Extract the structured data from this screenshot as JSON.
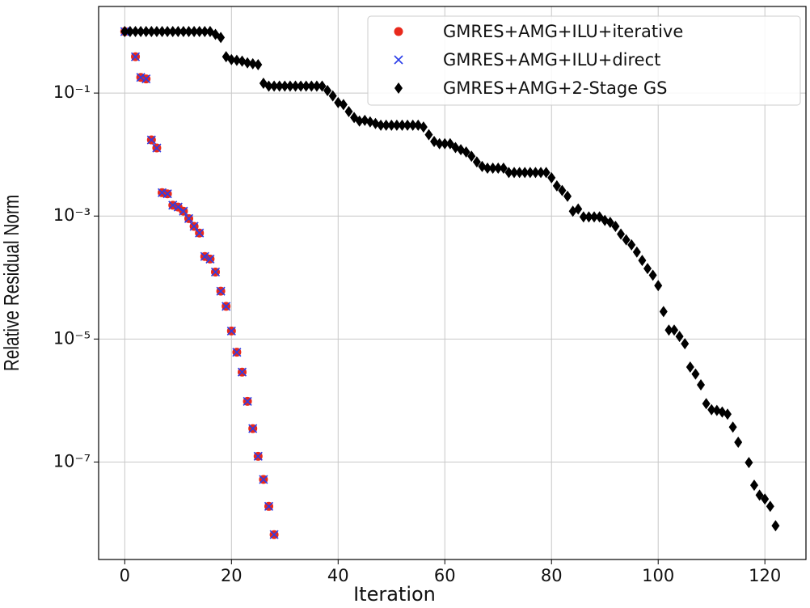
{
  "chart_data": {
    "type": "scatter",
    "xlabel": "Iteration",
    "ylabel": "Relative Residual Norm",
    "xlim": [
      -4.9,
      127.7
    ],
    "ylim": [
      2.6e-09,
      2.56
    ],
    "ylog": true,
    "grid": true,
    "legend": "upper right",
    "xticks": [
      0,
      20,
      40,
      60,
      80,
      100,
      120
    ],
    "yticks": [
      {
        "value": 0.1,
        "label": "10⁻¹"
      },
      {
        "value": 0.001,
        "label": "10⁻³"
      },
      {
        "value": 1e-05,
        "label": "10⁻⁵"
      },
      {
        "value": 1e-07,
        "label": "10⁻⁷"
      }
    ],
    "series": [
      {
        "name": "GMRES+AMG+ILU+iterative",
        "color": "#e8291c",
        "marker": "o",
        "x": [
          0,
          2,
          3,
          4,
          5,
          6,
          7,
          8,
          9,
          10,
          11,
          12,
          13,
          14,
          15,
          16,
          17,
          18,
          19,
          20,
          21,
          22,
          23,
          24,
          25,
          26,
          27,
          28
        ],
        "values": [
          1.0,
          0.39,
          0.18,
          0.17,
          0.0173,
          0.0128,
          0.0024,
          0.0023,
          0.0015,
          0.0014,
          0.0012,
          0.00091,
          0.00068,
          0.00053,
          0.00022,
          0.0002,
          0.000123,
          6e-05,
          3.4e-05,
          1.35e-05,
          6.1e-06,
          2.9e-06,
          9.7e-07,
          3.5e-07,
          1.24e-07,
          5.2e-08,
          1.9e-08,
          6.6e-09
        ]
      },
      {
        "name": "GMRES+AMG+ILU+direct",
        "color": "#2a3de8",
        "marker": "x",
        "x": [
          0,
          2,
          3,
          4,
          5,
          6,
          7,
          8,
          9,
          10,
          11,
          12,
          13,
          14,
          15,
          16,
          17,
          18,
          19,
          20,
          21,
          22,
          23,
          24,
          25,
          26,
          27,
          28
        ],
        "values": [
          1.0,
          0.39,
          0.18,
          0.17,
          0.0173,
          0.0128,
          0.0024,
          0.0023,
          0.0015,
          0.0014,
          0.0012,
          0.00091,
          0.00068,
          0.00053,
          0.00022,
          0.0002,
          0.000123,
          6e-05,
          3.4e-05,
          1.35e-05,
          6.1e-06,
          2.9e-06,
          9.7e-07,
          3.5e-07,
          1.24e-07,
          5.2e-08,
          1.9e-08,
          6.6e-09
        ]
      },
      {
        "name": "GMRES+AMG+2-Stage GS",
        "color": "#000000",
        "marker": "D",
        "x": [
          0,
          1,
          2,
          3,
          4,
          5,
          6,
          7,
          8,
          9,
          10,
          11,
          12,
          13,
          14,
          15,
          16,
          17,
          18,
          19,
          20,
          21,
          22,
          23,
          24,
          25,
          26,
          27,
          28,
          29,
          30,
          31,
          32,
          33,
          34,
          35,
          36,
          37,
          38,
          39,
          40,
          41,
          42,
          43,
          44,
          45,
          46,
          47,
          48,
          49,
          50,
          51,
          52,
          53,
          54,
          55,
          56,
          57,
          58,
          59,
          60,
          61,
          62,
          63,
          64,
          65,
          66,
          67,
          68,
          69,
          70,
          71,
          72,
          73,
          74,
          75,
          76,
          77,
          78,
          79,
          80,
          81,
          82,
          83,
          84,
          85,
          86,
          87,
          88,
          89,
          90,
          91,
          92,
          93,
          94,
          95,
          96,
          97,
          98,
          99,
          100,
          101,
          102,
          103,
          104,
          105,
          106,
          107,
          108,
          109,
          110,
          111,
          112,
          113,
          114,
          115,
          117,
          118,
          119,
          120,
          121,
          122
        ],
        "values": [
          1.0,
          1.0,
          1.0,
          1.0,
          1.0,
          1.0,
          1.0,
          1.0,
          1.0,
          1.0,
          1.0,
          1.0,
          1.0,
          1.0,
          1.0,
          1.0,
          1.0,
          0.9,
          0.8,
          0.39,
          0.35,
          0.34,
          0.33,
          0.31,
          0.3,
          0.29,
          0.144,
          0.13,
          0.13,
          0.13,
          0.13,
          0.13,
          0.13,
          0.13,
          0.13,
          0.13,
          0.13,
          0.13,
          0.11,
          0.09,
          0.07,
          0.065,
          0.05,
          0.04,
          0.035,
          0.036,
          0.034,
          0.032,
          0.03,
          0.03,
          0.03,
          0.03,
          0.03,
          0.03,
          0.03,
          0.03,
          0.028,
          0.021,
          0.0163,
          0.015,
          0.015,
          0.015,
          0.013,
          0.012,
          0.011,
          0.0094,
          0.0076,
          0.0064,
          0.006,
          0.006,
          0.006,
          0.006,
          0.0051,
          0.0051,
          0.0051,
          0.0051,
          0.0051,
          0.0051,
          0.0051,
          0.0051,
          0.0042,
          0.0031,
          0.0026,
          0.0021,
          0.0012,
          0.0013,
          0.00097,
          0.00097,
          0.00097,
          0.00097,
          0.00085,
          0.00079,
          0.00068,
          0.00051,
          0.00041,
          0.00034,
          0.00026,
          0.00019,
          0.00014,
          0.000109,
          7.4e-05,
          2.8e-05,
          1.4e-05,
          1.4e-05,
          1.1e-05,
          8.4e-06,
          3.5e-06,
          2.7e-06,
          1.8e-06,
          8.9e-07,
          7.1e-07,
          6.9e-07,
          6.5e-07,
          6e-07,
          3.7e-07,
          2.1e-07,
          9.8e-08,
          4.2e-08,
          2.9e-08,
          2.5e-08,
          1.9e-08,
          9.2e-09
        ]
      }
    ]
  }
}
